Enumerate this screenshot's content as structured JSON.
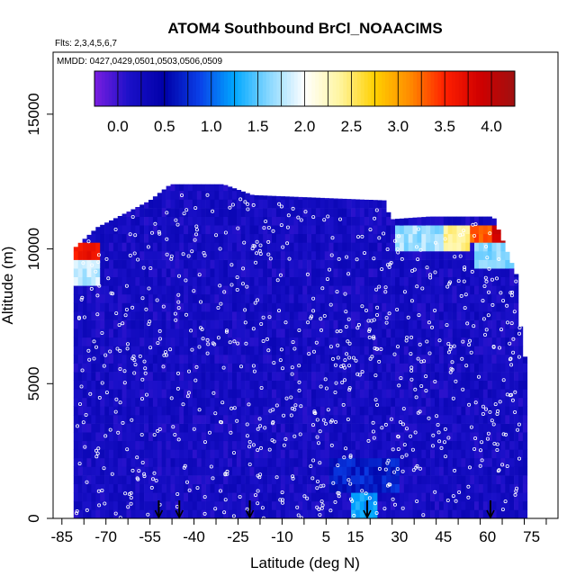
{
  "chart_data": {
    "type": "heatmap",
    "title": "ATOM4 Southbound BrCl_NOAACIMS",
    "subtitle_flights": "Flts: 2,3,4,5,6,7",
    "subtitle_dates": "MMDD: 0427,0429,0501,0503,0506,0509",
    "xlabel": "Latitude (deg N)",
    "ylabel": "Altitude (m)",
    "xlim": [
      -88,
      84
    ],
    "ylim": [
      0,
      17300
    ],
    "x_tick_labels": [
      "-85",
      "-70",
      "-55",
      "-40",
      "-25",
      "-10",
      "5",
      "15",
      "30",
      "45",
      "60",
      "75"
    ],
    "x_tick_values": [
      -85,
      -70,
      -55,
      -40,
      -25,
      -10,
      5,
      15,
      30,
      45,
      60,
      75
    ],
    "y_tick_labels": [
      "0",
      "5000",
      "10000",
      "15000"
    ],
    "y_tick_values": [
      0,
      5000,
      10000,
      15000
    ],
    "colorbar": {
      "tick_labels": [
        "0.0",
        "0.5",
        "1.0",
        "1.5",
        "2.0",
        "2.5",
        "3.0",
        "3.5",
        "4.0"
      ],
      "tick_values": [
        0,
        0.5,
        1,
        1.5,
        2,
        2.5,
        3,
        3.5,
        4
      ],
      "range": [
        -0.25,
        4.25
      ],
      "colors": [
        "#7a1ee0",
        "#1a10c8",
        "#0000a8",
        "#0a40e8",
        "#00a8ff",
        "#8ad8ff",
        "#ffffff",
        "#fff5a0",
        "#ffd000",
        "#ff8c00",
        "#ff2000",
        "#d00000",
        "#a01010"
      ]
    },
    "launch_arrows_lat": [
      -52,
      -45,
      -21,
      19,
      61
    ],
    "profile_tops_m": [
      {
        "lat": -81,
        "top": 10000
      },
      {
        "lat": -73,
        "top": 10800
      },
      {
        "lat": -62,
        "top": 11400
      },
      {
        "lat": -55,
        "top": 11800
      },
      {
        "lat": -48,
        "top": 12400
      },
      {
        "lat": -30,
        "top": 12400
      },
      {
        "lat": -20,
        "top": 12000
      },
      {
        "lat": 25,
        "top": 11800
      },
      {
        "lat": 27,
        "top": 11100
      },
      {
        "lat": 40,
        "top": 11200
      },
      {
        "lat": 62,
        "top": 11200
      },
      {
        "lat": 70,
        "top": 9000
      },
      {
        "lat": 72,
        "top": 6000
      },
      {
        "lat": 72,
        "top": 2500
      }
    ],
    "high_value_features": [
      {
        "lat_range": [
          -81,
          -72
        ],
        "alt_range": [
          9700,
          10300
        ],
        "value": 3.6
      },
      {
        "lat_range": [
          -81,
          -72
        ],
        "alt_range": [
          8700,
          9700
        ],
        "value": 1.8
      },
      {
        "lat_range": [
          28,
          45
        ],
        "alt_range": [
          10000,
          10900
        ],
        "value": 1.7
      },
      {
        "lat_range": [
          45,
          54
        ],
        "alt_range": [
          10000,
          10900
        ],
        "value": 2.4
      },
      {
        "lat_range": [
          54,
          62
        ],
        "alt_range": [
          10200,
          11000
        ],
        "value": 3.3
      },
      {
        "lat_range": [
          62,
          70
        ],
        "alt_range": [
          10300,
          11000
        ],
        "value": 3.9
      },
      {
        "lat_range": [
          55,
          70
        ],
        "alt_range": [
          9200,
          10200
        ],
        "value": 1.6
      },
      {
        "lat_range": [
          14,
          22
        ],
        "alt_range": [
          0,
          1100
        ],
        "value": 1.2
      },
      {
        "lat_range": [
          6,
          30
        ],
        "alt_range": [
          1100,
          2300
        ],
        "value": 0.7
      }
    ],
    "background_value": 0.2,
    "grid": false
  }
}
